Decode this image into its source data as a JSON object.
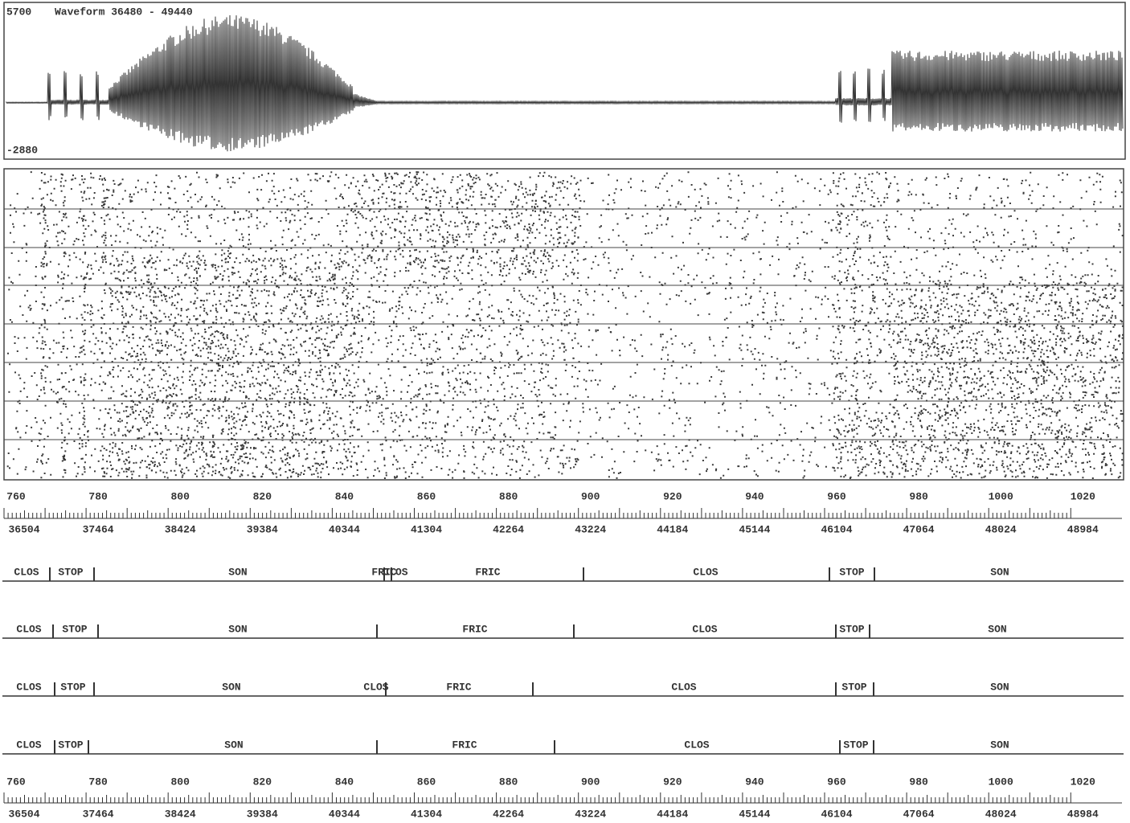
{
  "waveform": {
    "title": "Waveform 36480 - 49440",
    "max_label": "5700",
    "min_label": "-2880"
  },
  "axes": [
    {
      "top_labels": [
        "760",
        "780",
        "800",
        "820",
        "840",
        "860",
        "880",
        "900",
        "920",
        "940",
        "960",
        "980",
        "1000",
        "1020"
      ],
      "bottom_labels": [
        "36504",
        "37464",
        "38424",
        "39384",
        "40344",
        "41304",
        "42264",
        "43224",
        "44184",
        "45144",
        "46104",
        "47064",
        "48024",
        "48984"
      ]
    },
    {
      "top_labels": [
        "760",
        "780",
        "800",
        "820",
        "840",
        "860",
        "880",
        "900",
        "920",
        "940",
        "960",
        "980",
        "1000",
        "1020"
      ],
      "bottom_labels": [
        "36504",
        "37464",
        "38424",
        "39384",
        "40344",
        "41304",
        "42264",
        "43224",
        "44184",
        "45144",
        "46104",
        "47064",
        "48024",
        "48984"
      ]
    }
  ],
  "tiers": [
    {
      "segments": [
        "CLOS",
        "STOP",
        "SON",
        "FRIC",
        "CLOS",
        "FRIC",
        "CLOS",
        "STOP",
        "SON"
      ]
    },
    {
      "segments": [
        "CLOS",
        "STOP",
        "SON",
        "FRIC",
        "CLOS",
        "STOP",
        "SON"
      ]
    },
    {
      "segments": [
        "CLOS",
        "STOP",
        "SON",
        "CLOS",
        "FRIC",
        "CLOS",
        "STOP",
        "SON"
      ]
    },
    {
      "segments": [
        "CLOS",
        "STOP",
        "SON",
        "FRIC",
        "CLOS",
        "STOP",
        "SON"
      ]
    }
  ]
}
